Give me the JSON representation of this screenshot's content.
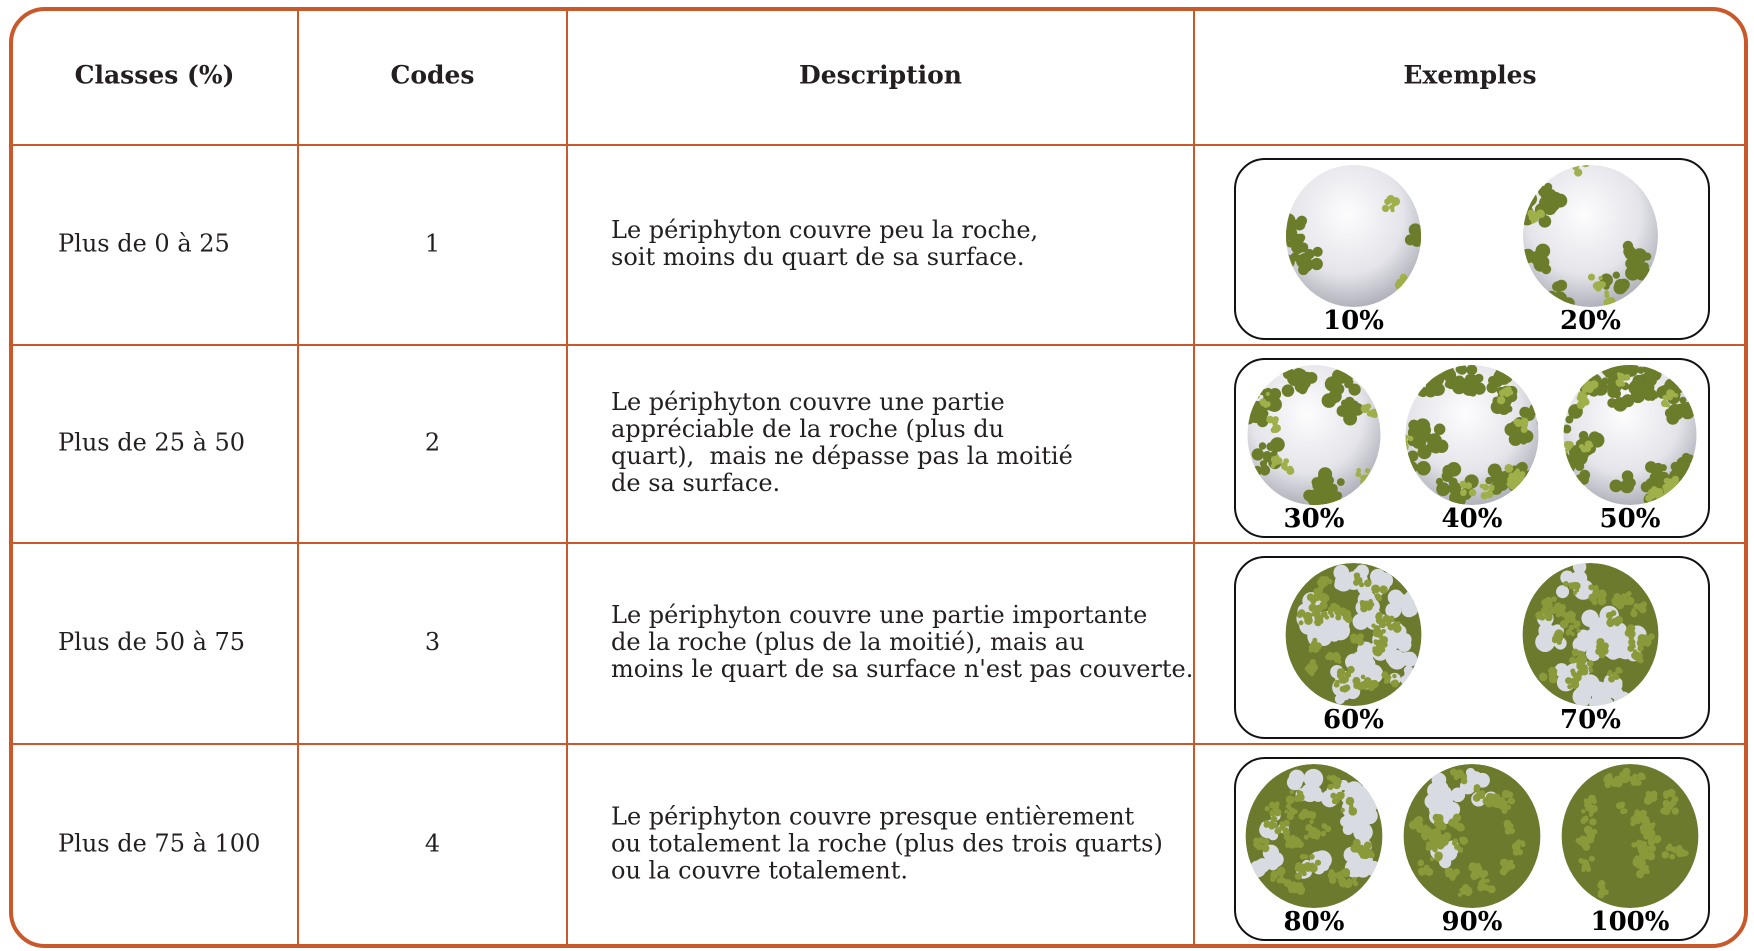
{
  "table": {
    "headers": [
      "Classes (%)",
      "Codes",
      "Description",
      "Exemples"
    ],
    "rows": [
      {
        "classe": "Plus de 0 à 25",
        "code": "1",
        "description": [
          "Le périphyton couvre peu la roche,",
          "soit moins du quart de sa surface."
        ],
        "examples": [
          "10%",
          "20%"
        ]
      },
      {
        "classe": "Plus de 25 à 50",
        "code": "2",
        "description": [
          "Le périphyton couvre une partie",
          "appréciable de la roche (plus du",
          "quart),  mais ne dépasse pas la moitié",
          "de sa surface."
        ],
        "examples": [
          "30%",
          "40%",
          "50%"
        ]
      },
      {
        "classe": "Plus de 50 à 75",
        "code": "3",
        "description": [
          "Le périphyton couvre une partie importante",
          "de la roche (plus de la moitié), mais au",
          "moins le quart de sa surface n'est pas couverte."
        ],
        "examples": [
          "60%",
          "70%"
        ]
      },
      {
        "classe": "Plus de 75 à 100",
        "code": "4",
        "description": [
          "Le périphyton couvre presque entièrement",
          "ou totalement la roche (plus des trois quarts)",
          "ou la couvre totalement."
        ],
        "examples": [
          "80%",
          "90%",
          "100%"
        ]
      }
    ]
  }
}
